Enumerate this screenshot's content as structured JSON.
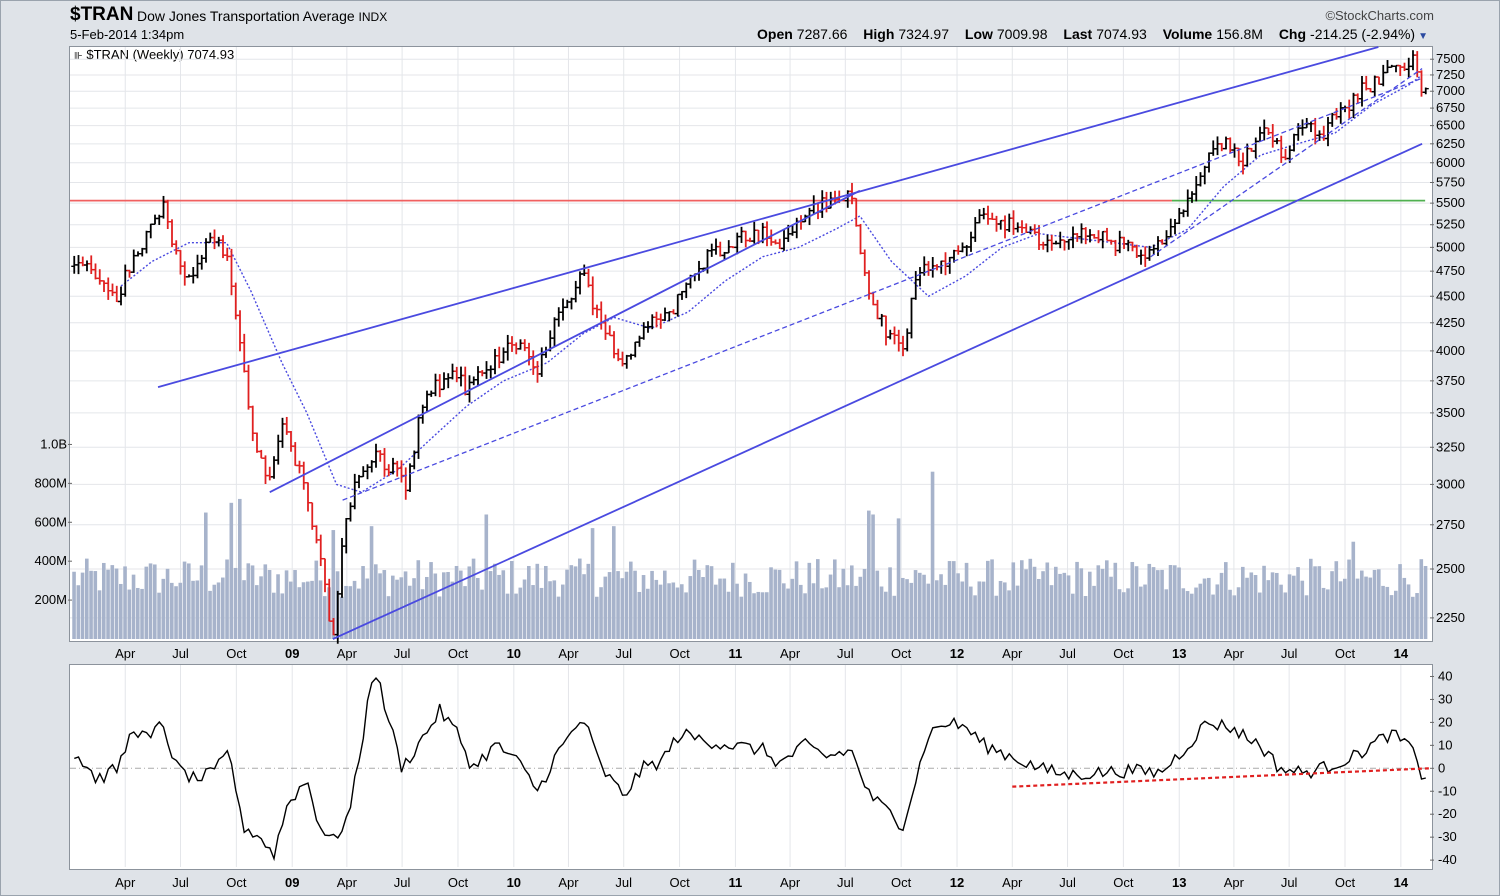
{
  "header": {
    "symbol": "$TRAN",
    "name": "Dow Jones Transportation Average",
    "exchange": "INDX",
    "date": "5-Feb-2014 1:34pm",
    "watermark": "©StockCharts.com",
    "open_label": "Open",
    "open": "7287.66",
    "high_label": "High",
    "high": "7324.97",
    "low_label": "Low",
    "low": "7009.98",
    "last_label": "Last",
    "last": "7074.93",
    "volume_label": "Volume",
    "volume": "156.8M",
    "chg_label": "Chg",
    "chg": "-214.25 (-2.94%)"
  },
  "legend": "$TRAN (Weekly) 7074.93",
  "colors": {
    "up": "#000000",
    "down": "#e02020",
    "trend": "#4a4ae0",
    "resistance": "#f06060",
    "support": "#50b050",
    "volume": "#a7b3cb"
  },
  "chart_data": [
    {
      "type": "line",
      "panel": "price",
      "scale": "log",
      "ylim": [
        2150,
        7700
      ],
      "y_ticks": [
        2250,
        2500,
        2750,
        3000,
        3250,
        3500,
        3750,
        4000,
        4250,
        4500,
        4750,
        5000,
        5250,
        5500,
        5750,
        6000,
        6250,
        6500,
        6750,
        7000,
        7250,
        7500
      ],
      "x_ticks": [
        "Apr",
        "Jul",
        "Oct",
        "09",
        "Apr",
        "Jul",
        "Oct",
        "10",
        "Apr",
        "Jul",
        "Oct",
        "11",
        "Apr",
        "Jul",
        "Oct",
        "12",
        "Apr",
        "Jul",
        "Oct",
        "13",
        "Apr",
        "Jul",
        "Oct",
        "14"
      ],
      "x_tick_dates": [
        "2008-04",
        "2008-07",
        "2008-10",
        "2009-01",
        "2009-04",
        "2009-07",
        "2009-10",
        "2010-01",
        "2010-04",
        "2010-07",
        "2010-10",
        "2011-01",
        "2011-04",
        "2011-07",
        "2011-10",
        "2012-01",
        "2012-04",
        "2012-07",
        "2012-10",
        "2013-01",
        "2013-04",
        "2013-07",
        "2013-10",
        "2014-01"
      ],
      "price_points": [
        [
          "2008-01-15",
          4800
        ],
        [
          "2008-02-15",
          4750
        ],
        [
          "2008-03-15",
          4450
        ],
        [
          "2008-04-15",
          4900
        ],
        [
          "2008-05-15",
          5200
        ],
        [
          "2008-06-01",
          5500
        ],
        [
          "2008-06-20",
          5050
        ],
        [
          "2008-07-15",
          4650
        ],
        [
          "2008-08-15",
          5100
        ],
        [
          "2008-09-15",
          4950
        ],
        [
          "2008-10-10",
          3900
        ],
        [
          "2008-10-25",
          3400
        ],
        [
          "2008-11-20",
          3000
        ],
        [
          "2008-12-15",
          3400
        ],
        [
          "2009-01-15",
          3050
        ],
        [
          "2009-02-15",
          2600
        ],
        [
          "2009-03-09",
          2150
        ],
        [
          "2009-03-25",
          2650
        ],
        [
          "2009-04-15",
          3000
        ],
        [
          "2009-05-15",
          3200
        ],
        [
          "2009-06-15",
          3100
        ],
        [
          "2009-07-10",
          3000
        ],
        [
          "2009-08-05",
          3600
        ],
        [
          "2009-09-15",
          3800
        ],
        [
          "2009-10-15",
          3700
        ],
        [
          "2009-11-15",
          3800
        ],
        [
          "2009-12-31",
          4100
        ],
        [
          "2010-01-25",
          4000
        ],
        [
          "2010-02-10",
          3850
        ],
        [
          "2010-03-15",
          4300
        ],
        [
          "2010-04-25",
          4750
        ],
        [
          "2010-05-25",
          4200
        ],
        [
          "2010-07-05",
          3900
        ],
        [
          "2010-08-15",
          4300
        ],
        [
          "2010-09-15",
          4350
        ],
        [
          "2010-10-15",
          4600
        ],
        [
          "2010-11-15",
          4900
        ],
        [
          "2010-12-31",
          5100
        ],
        [
          "2011-02-15",
          5150
        ],
        [
          "2011-03-15",
          5000
        ],
        [
          "2011-04-25",
          5400
        ],
        [
          "2011-05-15",
          5450
        ],
        [
          "2011-07-10",
          5600
        ],
        [
          "2011-08-08",
          4500
        ],
        [
          "2011-08-25",
          4300
        ],
        [
          "2011-10-03",
          3950
        ],
        [
          "2011-10-25",
          4700
        ],
        [
          "2011-11-25",
          4800
        ],
        [
          "2011-12-31",
          4900
        ],
        [
          "2012-02-10",
          5350
        ],
        [
          "2012-03-15",
          5300
        ],
        [
          "2012-04-15",
          5200
        ],
        [
          "2012-05-25",
          5000
        ],
        [
          "2012-06-15",
          5100
        ],
        [
          "2012-08-15",
          5150
        ],
        [
          "2012-09-15",
          5050
        ],
        [
          "2012-11-15",
          4900
        ],
        [
          "2012-12-31",
          5300
        ],
        [
          "2013-02-15",
          6000
        ],
        [
          "2013-03-15",
          6250
        ],
        [
          "2013-04-15",
          6000
        ],
        [
          "2013-05-15",
          6500
        ],
        [
          "2013-06-25",
          6100
        ],
        [
          "2013-07-25",
          6600
        ],
        [
          "2013-08-25",
          6400
        ],
        [
          "2013-09-25",
          6700
        ],
        [
          "2013-10-25",
          7000
        ],
        [
          "2013-12-15",
          7300
        ],
        [
          "2014-01-20",
          7550
        ],
        [
          "2014-02-05",
          7075
        ]
      ],
      "ma_points": [
        [
          "2008-03-25",
          4600
        ],
        [
          "2008-05-15",
          4850
        ],
        [
          "2008-07-15",
          5050
        ],
        [
          "2008-09-15",
          5050
        ],
        [
          "2008-10-25",
          4550
        ],
        [
          "2008-12-15",
          3900
        ],
        [
          "2009-01-25",
          3500
        ],
        [
          "2009-03-15",
          3000
        ],
        [
          "2009-04-25",
          2950
        ],
        [
          "2009-06-25",
          3100
        ],
        [
          "2009-08-15",
          3300
        ],
        [
          "2009-10-15",
          3550
        ],
        [
          "2009-12-15",
          3750
        ],
        [
          "2010-02-25",
          3900
        ],
        [
          "2010-04-25",
          4150
        ],
        [
          "2010-06-15",
          4300
        ],
        [
          "2010-08-15",
          4200
        ],
        [
          "2010-10-15",
          4350
        ],
        [
          "2010-12-15",
          4650
        ],
        [
          "2011-02-15",
          4900
        ],
        [
          "2011-04-15",
          5000
        ],
        [
          "2011-06-15",
          5200
        ],
        [
          "2011-07-25",
          5350
        ],
        [
          "2011-09-15",
          4850
        ],
        [
          "2011-11-15",
          4500
        ],
        [
          "2012-01-15",
          4700
        ],
        [
          "2012-03-15",
          5000
        ],
        [
          "2012-05-15",
          5150
        ],
        [
          "2012-07-15",
          5100
        ],
        [
          "2012-09-15",
          5050
        ],
        [
          "2012-11-15",
          5000
        ],
        [
          "2013-01-15",
          5200
        ],
        [
          "2013-03-15",
          5700
        ],
        [
          "2013-05-15",
          6100
        ],
        [
          "2013-07-15",
          6250
        ],
        [
          "2013-09-15",
          6400
        ],
        [
          "2013-11-15",
          6800
        ],
        [
          "2014-01-15",
          7100
        ],
        [
          "2014-02-05",
          7250
        ]
      ],
      "trendlines": [
        {
          "style": "solid",
          "from": [
            "2008-05-25",
            3700
          ],
          "to": [
            "2013-11-25",
            7700
          ]
        },
        {
          "style": "solid",
          "from": [
            "2008-11-25",
            2950
          ],
          "to": [
            "2011-07-25",
            5650
          ]
        },
        {
          "style": "solid",
          "from": [
            "2009-03-09",
            2150
          ],
          "to": [
            "2014-02-05",
            6250
          ]
        },
        {
          "style": "dashed",
          "from": [
            "2009-03-25",
            2900
          ],
          "to": [
            "2014-02-05",
            7200
          ]
        },
        {
          "style": "dashed",
          "from": [
            "2012-11-15",
            4900
          ],
          "to": [
            "2014-02-05",
            7350
          ]
        }
      ],
      "horizontal_levels": [
        {
          "color": "resistance",
          "value": 5530,
          "from": "2008-01-01",
          "to": "2012-12-20"
        },
        {
          "color": "support",
          "value": 5530,
          "from": "2012-12-20",
          "to": "2014-02-10"
        }
      ],
      "x_range": [
        "2008-01-01",
        "2014-02-18"
      ]
    },
    {
      "type": "bar",
      "panel": "volume",
      "ylim": [
        0,
        1100
      ],
      "y_ticks": [
        "200M",
        "400M",
        "600M",
        "800M",
        "1.0B"
      ],
      "y_tick_values": [
        200,
        400,
        600,
        800,
        1000
      ],
      "spikes": [
        [
          "2008-08-15",
          650
        ],
        [
          "2008-09-25",
          700
        ],
        [
          "2008-10-10",
          720
        ],
        [
          "2009-03-09",
          560
        ],
        [
          "2009-05-15",
          580
        ],
        [
          "2009-11-15",
          640
        ],
        [
          "2010-05-10",
          570
        ],
        [
          "2010-06-15",
          580
        ],
        [
          "2011-08-08",
          660
        ],
        [
          "2011-08-15",
          640
        ],
        [
          "2011-09-25",
          620
        ],
        [
          "2011-11-25",
          860
        ],
        [
          "2013-10-15",
          500
        ]
      ],
      "baseline": 360
    },
    {
      "type": "line",
      "panel": "oscillator",
      "ylim": [
        -43,
        45
      ],
      "y_ticks": [
        -40,
        -30,
        -20,
        -10,
        0,
        10,
        20,
        30,
        40
      ],
      "points": [
        [
          "2008-01-15",
          5
        ],
        [
          "2008-02-15",
          -5
        ],
        [
          "2008-03-20",
          0
        ],
        [
          "2008-04-15",
          18
        ],
        [
          "2008-05-10",
          12
        ],
        [
          "2008-06-01",
          20
        ],
        [
          "2008-06-25",
          0
        ],
        [
          "2008-07-25",
          -5
        ],
        [
          "2008-08-25",
          -2
        ],
        [
          "2008-09-20",
          8
        ],
        [
          "2008-10-10",
          -25
        ],
        [
          "2008-11-10",
          -30
        ],
        [
          "2008-12-01",
          -38
        ],
        [
          "2008-12-25",
          -15
        ],
        [
          "2009-01-25",
          -5
        ],
        [
          "2009-02-15",
          -25
        ],
        [
          "2009-03-09",
          -32
        ],
        [
          "2009-04-05",
          -20
        ],
        [
          "2009-04-25",
          10
        ],
        [
          "2009-05-15",
          45
        ],
        [
          "2009-06-10",
          20
        ],
        [
          "2009-07-01",
          0
        ],
        [
          "2009-08-01",
          12
        ],
        [
          "2009-09-01",
          25
        ],
        [
          "2009-10-01",
          15
        ],
        [
          "2009-10-25",
          0
        ],
        [
          "2009-12-01",
          10
        ],
        [
          "2010-01-01",
          5
        ],
        [
          "2010-02-10",
          -10
        ],
        [
          "2010-03-10",
          5
        ],
        [
          "2010-04-25",
          22
        ],
        [
          "2010-05-25",
          0
        ],
        [
          "2010-07-01",
          -12
        ],
        [
          "2010-08-01",
          0
        ],
        [
          "2010-09-01",
          3
        ],
        [
          "2010-10-01",
          15
        ],
        [
          "2010-11-15",
          12
        ],
        [
          "2010-12-25",
          10
        ],
        [
          "2011-02-15",
          8
        ],
        [
          "2011-03-15",
          2
        ],
        [
          "2011-04-25",
          10
        ],
        [
          "2011-06-01",
          5
        ],
        [
          "2011-07-10",
          8
        ],
        [
          "2011-08-10",
          -12
        ],
        [
          "2011-09-15",
          -20
        ],
        [
          "2011-10-03",
          -25
        ],
        [
          "2011-10-20",
          -10
        ],
        [
          "2011-11-15",
          15
        ],
        [
          "2011-12-15",
          20
        ],
        [
          "2012-01-15",
          18
        ],
        [
          "2012-02-15",
          10
        ],
        [
          "2012-04-01",
          5
        ],
        [
          "2012-05-15",
          0
        ],
        [
          "2012-07-01",
          -3
        ],
        [
          "2012-08-15",
          -2
        ],
        [
          "2012-10-15",
          -1
        ],
        [
          "2012-12-01",
          -2
        ],
        [
          "2013-01-15",
          10
        ],
        [
          "2013-02-15",
          20
        ],
        [
          "2013-03-25",
          18
        ],
        [
          "2013-05-15",
          10
        ],
        [
          "2013-06-15",
          0
        ],
        [
          "2013-07-25",
          -2
        ],
        [
          "2013-08-25",
          0
        ],
        [
          "2013-10-15",
          5
        ],
        [
          "2013-11-25",
          12
        ],
        [
          "2013-12-15",
          15
        ],
        [
          "2014-01-15",
          10
        ],
        [
          "2014-02-05",
          -3
        ]
      ],
      "guide": {
        "color": "down",
        "style": "dashed",
        "from": [
          "2012-04-01",
          -8
        ],
        "to": [
          "2014-02-18",
          0
        ]
      }
    }
  ]
}
